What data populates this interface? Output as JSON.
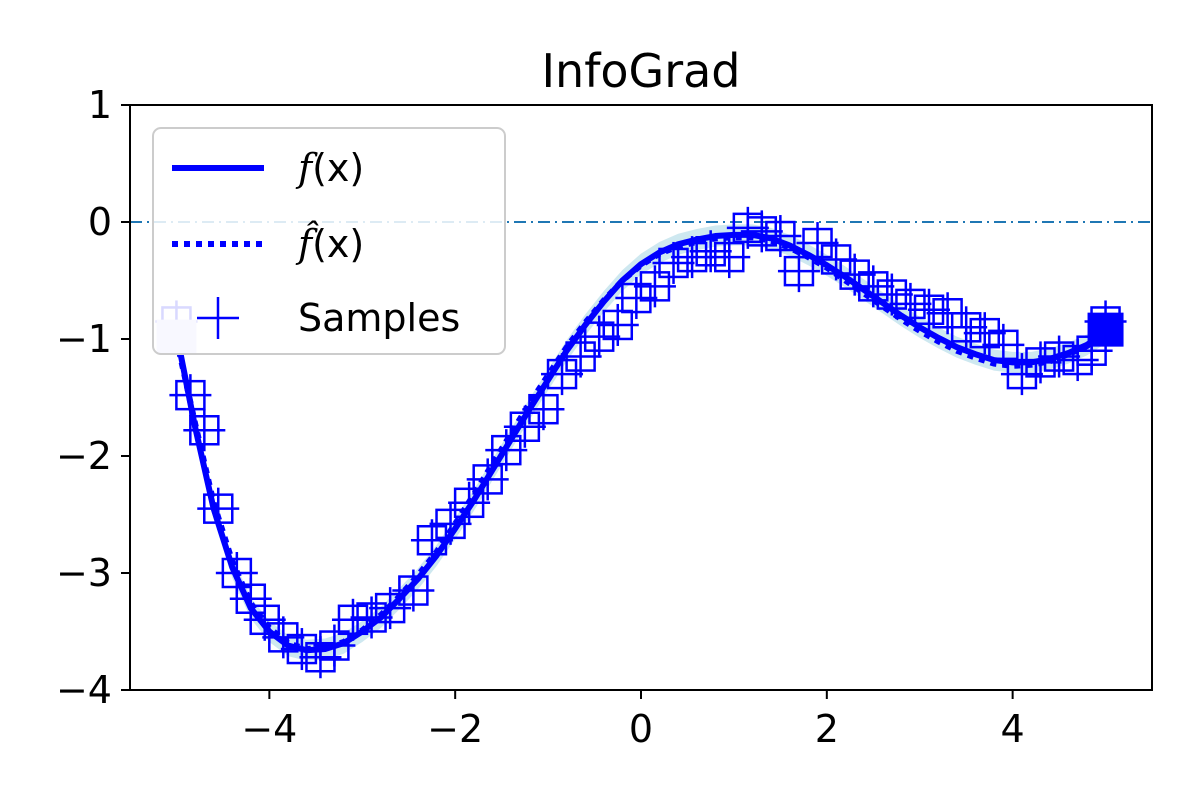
{
  "chart_data": {
    "type": "line",
    "title": "InfoGrad",
    "xlabel": "",
    "ylabel": "",
    "xlim": [
      -5.5,
      5.5
    ],
    "ylim": [
      -4,
      1
    ],
    "xticks": [
      -4,
      -2,
      0,
      2,
      4
    ],
    "xtick_labels": [
      "−4",
      "−2",
      "0",
      "2",
      "4"
    ],
    "yticks": [
      -4,
      -3,
      -2,
      -1,
      0,
      1
    ],
    "ytick_labels": [
      "−4",
      "−3",
      "−2",
      "−1",
      "0",
      "1"
    ],
    "grid": false,
    "legend_position": "top-left",
    "reference_line": {
      "y": 0,
      "style": "dash-dot",
      "color": "#1f77b4"
    },
    "colors": {
      "series": "#0000ff",
      "band": "#add8e6",
      "light_marker": "#ccccff"
    },
    "series": [
      {
        "name": "f(x)",
        "legend_base": "f",
        "legend_suffix": "(x)",
        "style": "solid",
        "x": [
          -5.0,
          -4.8,
          -4.6,
          -4.4,
          -4.2,
          -4.0,
          -3.8,
          -3.6,
          -3.4,
          -3.2,
          -3.0,
          -2.8,
          -2.6,
          -2.4,
          -2.2,
          -2.0,
          -1.8,
          -1.6,
          -1.4,
          -1.2,
          -1.0,
          -0.8,
          -0.6,
          -0.4,
          -0.2,
          0.0,
          0.2,
          0.4,
          0.6,
          0.8,
          1.0,
          1.2,
          1.4,
          1.6,
          1.8,
          2.0,
          2.2,
          2.4,
          2.6,
          2.8,
          3.0,
          3.2,
          3.4,
          3.6,
          3.8,
          4.0,
          4.2,
          4.4,
          4.6,
          4.8,
          5.0
        ],
        "y": [
          -0.95,
          -1.75,
          -2.45,
          -2.95,
          -3.3,
          -3.5,
          -3.62,
          -3.66,
          -3.65,
          -3.6,
          -3.5,
          -3.38,
          -3.22,
          -3.05,
          -2.85,
          -2.62,
          -2.38,
          -2.12,
          -1.86,
          -1.6,
          -1.35,
          -1.1,
          -0.88,
          -0.68,
          -0.5,
          -0.36,
          -0.26,
          -0.19,
          -0.15,
          -0.12,
          -0.11,
          -0.11,
          -0.14,
          -0.2,
          -0.28,
          -0.37,
          -0.47,
          -0.58,
          -0.69,
          -0.8,
          -0.9,
          -0.99,
          -1.07,
          -1.13,
          -1.18,
          -1.2,
          -1.2,
          -1.17,
          -1.12,
          -1.05,
          -0.95
        ]
      },
      {
        "name": "f̂(x)",
        "legend_base": "f̂",
        "legend_suffix": "(x)",
        "style": "dotted",
        "x": [
          -5.0,
          -4.8,
          -4.6,
          -4.4,
          -4.2,
          -4.0,
          -3.8,
          -3.6,
          -3.4,
          -3.2,
          -3.0,
          -2.8,
          -2.6,
          -2.4,
          -2.2,
          -2.0,
          -1.8,
          -1.6,
          -1.4,
          -1.2,
          -1.0,
          -0.8,
          -0.6,
          -0.4,
          -0.2,
          0.0,
          0.2,
          0.4,
          0.6,
          0.8,
          1.0,
          1.2,
          1.4,
          1.6,
          1.8,
          2.0,
          2.2,
          2.4,
          2.6,
          2.8,
          3.0,
          3.2,
          3.4,
          3.6,
          3.8,
          4.0,
          4.2,
          4.4,
          4.6,
          4.8,
          5.0
        ],
        "y": [
          -1.0,
          -1.72,
          -2.4,
          -2.9,
          -3.26,
          -3.47,
          -3.6,
          -3.65,
          -3.64,
          -3.59,
          -3.49,
          -3.36,
          -3.2,
          -3.02,
          -2.82,
          -2.58,
          -2.33,
          -2.07,
          -1.81,
          -1.55,
          -1.31,
          -1.07,
          -0.86,
          -0.67,
          -0.5,
          -0.37,
          -0.27,
          -0.21,
          -0.17,
          -0.14,
          -0.13,
          -0.13,
          -0.16,
          -0.22,
          -0.3,
          -0.39,
          -0.5,
          -0.61,
          -0.72,
          -0.83,
          -0.93,
          -1.02,
          -1.1,
          -1.16,
          -1.21,
          -1.23,
          -1.22,
          -1.19,
          -1.13,
          -1.06,
          -0.97
        ]
      },
      {
        "name": "Samples",
        "style": "markers",
        "x": [
          -5.0,
          -4.85,
          -4.7,
          -4.55,
          -4.35,
          -4.2,
          -4.05,
          -3.85,
          -3.65,
          -3.45,
          -3.3,
          -3.1,
          -2.9,
          -2.7,
          -2.45,
          -2.25,
          -2.05,
          -1.85,
          -1.65,
          -1.45,
          -1.25,
          -1.05,
          -0.85,
          -0.65,
          -0.45,
          -0.25,
          -0.05,
          0.15,
          0.35,
          0.55,
          0.75,
          0.95,
          1.15,
          1.3,
          1.5,
          1.7,
          1.9,
          2.1,
          2.3,
          2.5,
          2.7,
          2.9,
          3.1,
          3.3,
          3.5,
          3.7,
          3.9,
          4.1,
          4.3,
          4.5,
          4.7,
          4.85,
          5.0
        ],
        "y": [
          -0.85,
          -1.48,
          -1.78,
          -2.45,
          -3.0,
          -3.22,
          -3.4,
          -3.55,
          -3.65,
          -3.72,
          -3.62,
          -3.4,
          -3.38,
          -3.3,
          -3.15,
          -2.72,
          -2.58,
          -2.4,
          -2.2,
          -1.95,
          -1.75,
          -1.6,
          -1.3,
          -1.15,
          -0.98,
          -0.88,
          -0.65,
          -0.55,
          -0.35,
          -0.3,
          -0.25,
          -0.3,
          -0.05,
          -0.08,
          -0.12,
          -0.42,
          -0.18,
          -0.32,
          -0.45,
          -0.55,
          -0.62,
          -0.7,
          -0.75,
          -0.78,
          -0.9,
          -0.95,
          -1.05,
          -1.3,
          -1.2,
          -1.15,
          -1.18,
          -1.1,
          -0.85
        ]
      }
    ]
  }
}
